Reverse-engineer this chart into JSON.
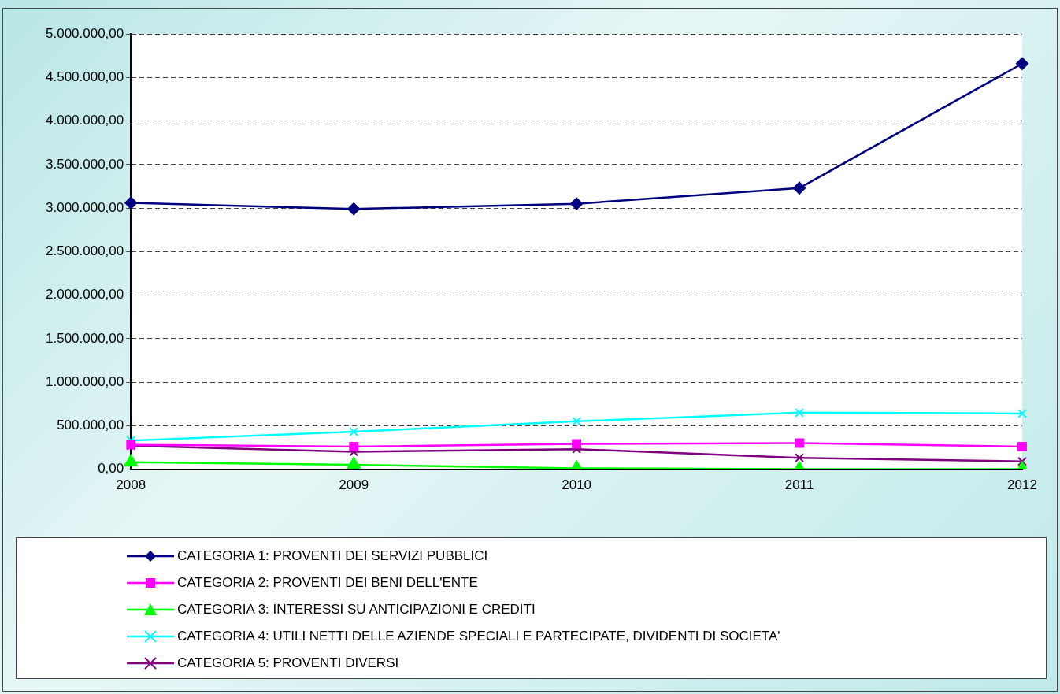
{
  "chart_data": {
    "type": "line",
    "categories": [
      "2008",
      "2009",
      "2010",
      "2011",
      "2012"
    ],
    "series": [
      {
        "name": "CATEGORIA 1: PROVENTI DEI SERVIZI PUBBLICI",
        "color": "#000080",
        "marker": "diamond",
        "values": [
          3060000,
          2990000,
          3050000,
          3230000,
          4660000
        ]
      },
      {
        "name": "CATEGORIA 2: PROVENTI DEI BENI DELL'ENTE",
        "color": "#ff00ff",
        "marker": "square",
        "values": [
          280000,
          260000,
          290000,
          300000,
          260000
        ]
      },
      {
        "name": "CATEGORIA 3: INTERESSI SU ANTICIPAZIONI E CREDITI",
        "color": "#00ff00",
        "marker": "triangle",
        "values": [
          80000,
          50000,
          10000,
          0,
          0
        ]
      },
      {
        "name": "CATEGORIA 4: UTILI NETTI DELLE AZIENDE SPECIALI E PARTECIPATE, DIVIDENTI DI SOCIETA'",
        "color": "#00ffff",
        "marker": "cross",
        "values": [
          330000,
          430000,
          550000,
          650000,
          640000
        ]
      },
      {
        "name": "CATEGORIA 5: PROVENTI DIVERSI",
        "color": "#800080",
        "marker": "cross",
        "values": [
          270000,
          200000,
          230000,
          130000,
          90000
        ]
      }
    ],
    "ylim": [
      0,
      5000000
    ],
    "yticks": [
      {
        "value": 0,
        "label": "0,00"
      },
      {
        "value": 500000,
        "label": "500.000,00"
      },
      {
        "value": 1000000,
        "label": "1.000.000,00"
      },
      {
        "value": 1500000,
        "label": "1.500.000,00"
      },
      {
        "value": 2000000,
        "label": "2.000.000,00"
      },
      {
        "value": 2500000,
        "label": "2.500.000,00"
      },
      {
        "value": 3000000,
        "label": "3.000.000,00"
      },
      {
        "value": 3500000,
        "label": "3.500.000,00"
      },
      {
        "value": 4000000,
        "label": "4.000.000,00"
      },
      {
        "value": 4500000,
        "label": "4.500.000,00"
      },
      {
        "value": 5000000,
        "label": "5.000.000,00"
      }
    ],
    "grid": "y",
    "legend": "bottom",
    "line_style": "solid"
  }
}
